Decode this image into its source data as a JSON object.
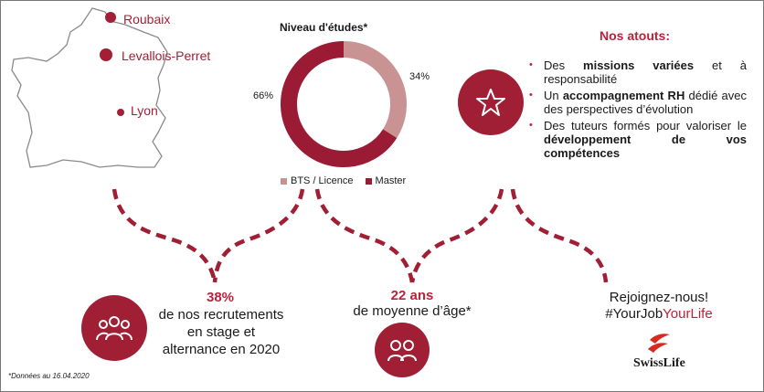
{
  "locations": {
    "cities": [
      {
        "name": "Roubaix"
      },
      {
        "name": "Levallois-Perret"
      },
      {
        "name": "Lyon"
      }
    ]
  },
  "education": {
    "title": "Niveau d'études*",
    "chart_data": {
      "type": "pie",
      "title": "Niveau d'études*",
      "donut": true,
      "slices": [
        {
          "label": "BTS / Licence",
          "value": 34,
          "value_label": "34%",
          "color": "#c99394"
        },
        {
          "label": "Master",
          "value": 66,
          "value_label": "66%",
          "color": "#9b1b34"
        }
      ],
      "legend_position": "bottom"
    }
  },
  "atouts": {
    "title": "Nos atouts:",
    "items": [
      {
        "before": "Des ",
        "bold": "missions variées",
        "after": " et à responsabilité"
      },
      {
        "before": "Un ",
        "bold": "accompagnement RH",
        "after": " dédié avec des perspectives d’évolution"
      },
      {
        "before": "Des tuteurs formés pour valoriser le ",
        "bold": "développement de vos compétences",
        "after": ""
      }
    ]
  },
  "stats": {
    "recruit": {
      "value": "38%",
      "line1": "de nos recrutements",
      "line2": "en stage et",
      "line3": "alternance en 2020"
    },
    "age": {
      "value": "22 ans",
      "label": "de moyenne d’âge*"
    }
  },
  "cta": {
    "line1": "Rejoignez-nous!",
    "hash_prefix": "#YourJob",
    "hash_suffix": "YourLife"
  },
  "brand": {
    "name": "SwissLife"
  },
  "footnote": "*Données au 16.04.2020",
  "colors": {
    "brand_red": "#a01f35",
    "accent_red": "#c0203b",
    "light_segment": "#c99394"
  },
  "icons": {
    "star": "star-icon",
    "group": "group-people-icon",
    "couple": "two-people-icon"
  }
}
